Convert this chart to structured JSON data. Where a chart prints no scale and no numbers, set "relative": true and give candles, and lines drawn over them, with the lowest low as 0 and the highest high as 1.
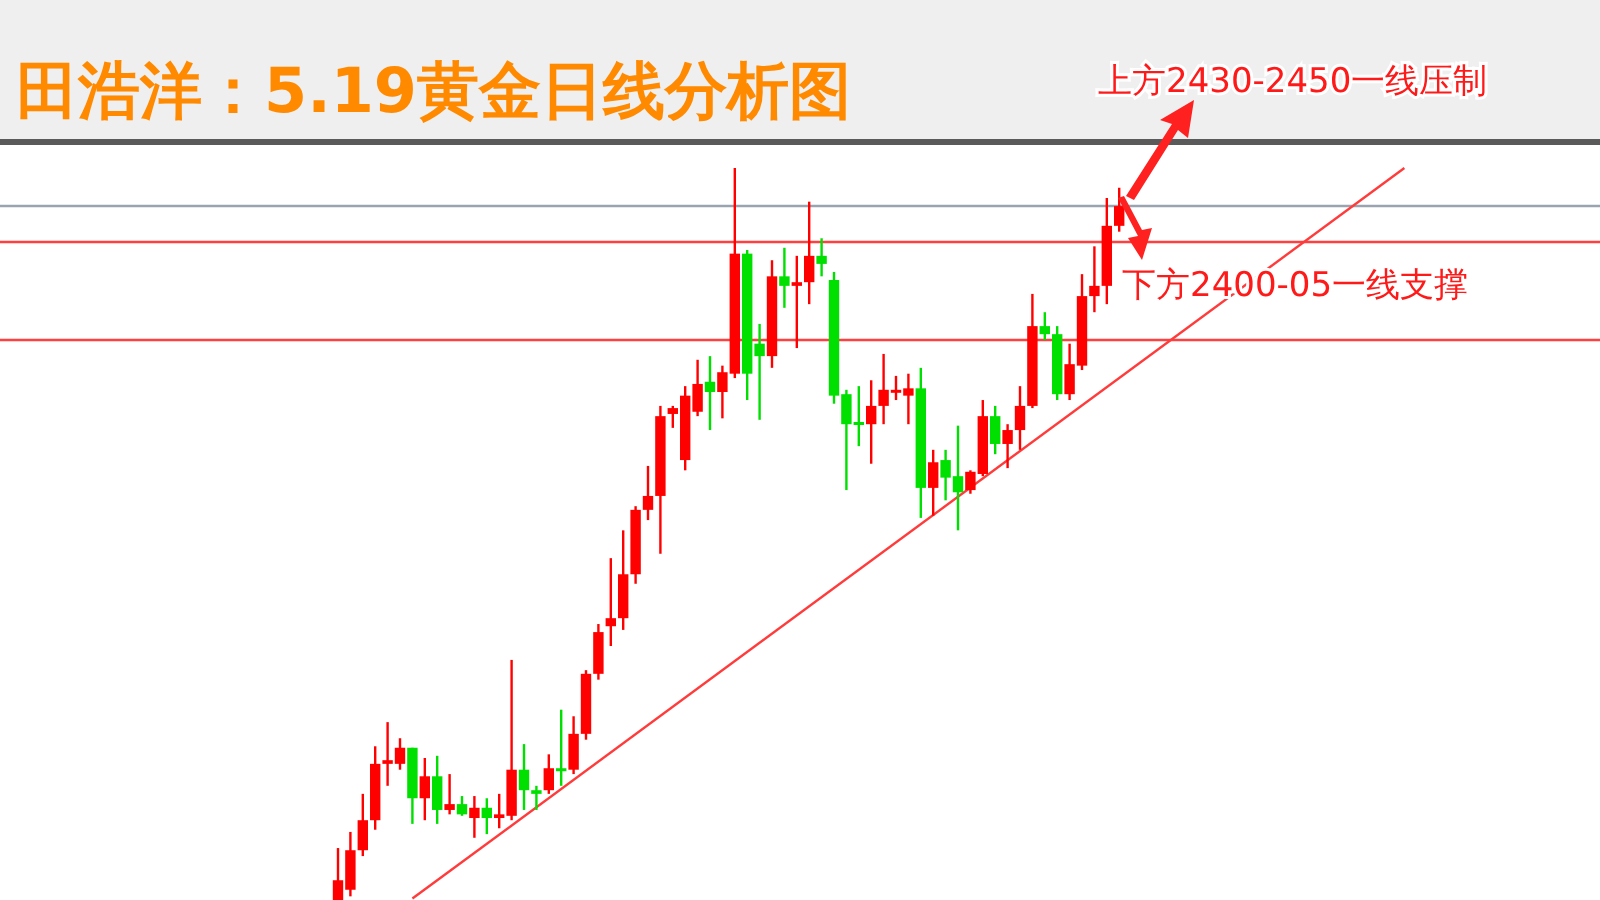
{
  "chart_data": {
    "type": "candlestick",
    "title": "田浩洋：5.19黄金日线分析图",
    "relative": true,
    "grid": false,
    "categories": [
      null,
      null,
      null,
      null,
      null,
      null,
      null,
      null,
      null,
      null,
      null,
      null,
      null,
      null,
      null,
      null,
      null,
      null,
      null,
      null,
      null,
      null,
      null,
      null,
      null,
      null,
      null,
      null,
      null,
      null,
      null,
      null,
      null,
      null,
      null,
      null,
      null,
      null,
      null,
      null,
      null,
      null,
      null,
      null,
      null,
      null,
      null,
      null,
      null,
      null,
      null,
      null,
      null,
      null,
      null,
      null,
      null,
      null,
      null,
      null,
      null,
      null,
      null,
      null,
      null,
      null,
      null,
      null,
      null,
      null,
      null,
      null,
      null,
      null,
      null,
      null,
      null,
      null,
      null,
      null,
      null,
      null,
      null,
      null,
      null,
      null,
      null
    ],
    "ohlc": [
      [
        0,
        0.071,
        0,
        0.027
      ],
      [
        0.014,
        0.093,
        0.005,
        0.068
      ],
      [
        0.068,
        0.145,
        0.06,
        0.109
      ],
      [
        0.109,
        0.21,
        0.096,
        0.186
      ],
      [
        0.186,
        0.243,
        0.156,
        0.191
      ],
      [
        0.186,
        0.221,
        0.178,
        0.208
      ],
      [
        0.208,
        0.208,
        0.104,
        0.139
      ],
      [
        0.139,
        0.194,
        0.109,
        0.169
      ],
      [
        0.169,
        0.197,
        0.104,
        0.123
      ],
      [
        0.123,
        0.172,
        0.117,
        0.131
      ],
      [
        0.131,
        0.142,
        0.115,
        0.117
      ],
      [
        0.112,
        0.142,
        0.085,
        0.126
      ],
      [
        0.126,
        0.139,
        0.09,
        0.112
      ],
      [
        0.112,
        0.145,
        0.098,
        0.117
      ],
      [
        0.115,
        0.328,
        0.109,
        0.178
      ],
      [
        0.178,
        0.213,
        0.123,
        0.15
      ],
      [
        0.15,
        0.156,
        0.123,
        0.145
      ],
      [
        0.15,
        0.199,
        0.145,
        0.18
      ],
      [
        0.18,
        0.26,
        0.156,
        0.178
      ],
      [
        0.178,
        0.251,
        0.172,
        0.227
      ],
      [
        0.227,
        0.314,
        0.219,
        0.309
      ],
      [
        0.309,
        0.377,
        0.301,
        0.366
      ],
      [
        0.374,
        0.467,
        0.347,
        0.385
      ],
      [
        0.385,
        0.505,
        0.369,
        0.445
      ],
      [
        0.445,
        0.538,
        0.432,
        0.533
      ],
      [
        0.533,
        0.593,
        0.519,
        0.552
      ],
      [
        0.552,
        0.675,
        0.473,
        0.661
      ],
      [
        0.664,
        0.675,
        0.645,
        0.672
      ],
      [
        0.601,
        0.702,
        0.587,
        0.689
      ],
      [
        0.667,
        0.738,
        0.661,
        0.705
      ],
      [
        0.708,
        0.743,
        0.642,
        0.694
      ],
      [
        0.694,
        0.73,
        0.658,
        0.721
      ],
      [
        0.719,
        1.0,
        0.713,
        0.883
      ],
      [
        0.883,
        0.888,
        0.683,
        0.719
      ],
      [
        0.76,
        0.787,
        0.656,
        0.743
      ],
      [
        0.743,
        0.874,
        0.727,
        0.852
      ],
      [
        0.852,
        0.891,
        0.809,
        0.839
      ],
      [
        0.839,
        0.88,
        0.754,
        0.844
      ],
      [
        0.844,
        0.954,
        0.814,
        0.88
      ],
      [
        0.88,
        0.904,
        0.852,
        0.869
      ],
      [
        0.847,
        0.858,
        0.678,
        0.689
      ],
      [
        0.691,
        0.697,
        0.56,
        0.65
      ],
      [
        0.653,
        0.702,
        0.62,
        0.65
      ],
      [
        0.65,
        0.71,
        0.596,
        0.675
      ],
      [
        0.675,
        0.746,
        0.65,
        0.697
      ],
      [
        0.694,
        0.716,
        0.683,
        0.697
      ],
      [
        0.689,
        0.719,
        0.65,
        0.699
      ],
      [
        0.699,
        0.727,
        0.522,
        0.563
      ],
      [
        0.563,
        0.615,
        0.525,
        0.598
      ],
      [
        0.601,
        0.615,
        0.546,
        0.577
      ],
      [
        0.579,
        0.648,
        0.505,
        0.557
      ],
      [
        0.56,
        0.587,
        0.555,
        0.585
      ],
      [
        0.582,
        0.683,
        0.579,
        0.661
      ],
      [
        0.661,
        0.675,
        0.609,
        0.623
      ],
      [
        0.623,
        0.65,
        0.59,
        0.642
      ],
      [
        0.642,
        0.702,
        0.615,
        0.675
      ],
      [
        0.675,
        0.828,
        0.672,
        0.784
      ],
      [
        0.784,
        0.803,
        0.765,
        0.773
      ],
      [
        0.773,
        0.784,
        0.683,
        0.691
      ],
      [
        0.691,
        0.76,
        0.683,
        0.732
      ],
      [
        0.73,
        0.855,
        0.724,
        0.825
      ],
      [
        0.825,
        0.893,
        0.803,
        0.839
      ],
      [
        0.839,
        0.959,
        0.814,
        0.921
      ],
      [
        0.921,
        0.973,
        0.913,
        0.948
      ],
      null,
      null,
      null,
      null,
      null,
      null,
      null,
      null,
      null,
      null,
      null,
      null,
      null,
      null,
      null,
      null,
      null,
      null,
      null,
      null,
      null,
      null,
      null
    ],
    "series": [
      {
        "type": "line",
        "values": [
          null,
          null,
          null,
          null,
          null,
          null,
          0.002,
          null,
          null,
          null,
          null,
          null,
          null,
          null,
          null,
          null,
          null,
          null,
          null,
          null,
          null,
          null,
          null,
          null,
          null,
          null,
          null,
          null,
          null,
          null,
          null,
          null,
          null,
          null,
          null,
          null,
          null,
          null,
          null,
          null,
          null,
          null,
          null,
          null,
          null,
          null,
          null,
          null,
          null,
          null,
          null,
          null,
          null,
          null,
          null,
          null,
          null,
          null,
          null,
          null,
          null,
          null,
          null,
          null,
          null,
          null,
          null,
          null,
          null,
          null,
          null,
          null,
          null,
          null,
          null,
          null,
          null,
          null,
          null,
          null,
          null,
          null,
          null,
          null,
          null,
          null,
          1.0
        ],
        "color": "#ff3b3b"
      }
    ],
    "ref_lines": [
      {
        "axis": "y",
        "value": 0.948,
        "color": "#9aa4b0"
      },
      {
        "axis": "y",
        "value": 0.899,
        "color": "#ff4040"
      },
      {
        "axis": "y",
        "value": 0.765,
        "color": "#ff4040"
      }
    ],
    "annotations": [
      "上方2430-2450一线压制",
      "下方2400-05一线支撑"
    ]
  }
}
